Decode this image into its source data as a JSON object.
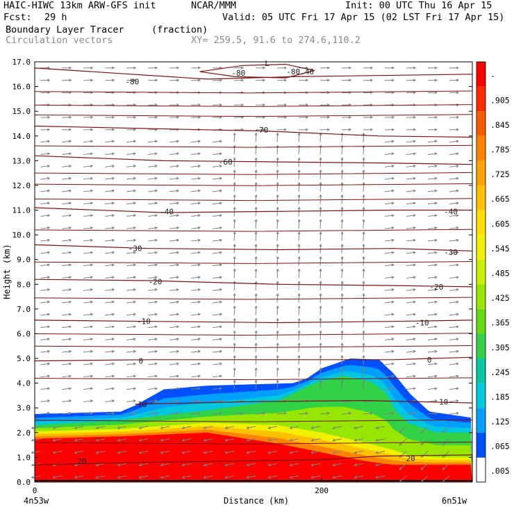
{
  "header": {
    "model": "HAIC-HIWC 13km ARW-GFS init",
    "center": "NCAR/MMM",
    "init": "Init: 00 UTC Thu 16 Apr 15",
    "fcst_label": "Fcst:",
    "fcst_value": "29 h",
    "valid": "Valid: 05 UTC Fri 17 Apr 15 (02 LST Fri 17 Apr 15)",
    "field": "Boundary Layer Tracer",
    "field_units": "(fraction)",
    "overlay": "Circulation vectors",
    "xy": "XY= 259.5, 91.6 to 274.6,110.2"
  },
  "colors": {
    "contour": "#7a1010",
    "vector": "#808080",
    "red": "#ff0000",
    "blue": "#0050ff"
  },
  "chart_data": {
    "type": "heatmap",
    "title": "Boundary Layer Tracer",
    "xlabel": "Distance (km)",
    "ylabel": "Height (km)",
    "xlim": [
      0,
      305
    ],
    "ylim": [
      0,
      17
    ],
    "x_ticks": [
      0,
      200
    ],
    "x_end_labels": [
      "4n53w",
      "6n51w"
    ],
    "y_ticks": [
      0.0,
      1.0,
      2.0,
      3.0,
      4.0,
      5.0,
      6.0,
      7.0,
      8.0,
      9.0,
      10.0,
      11.0,
      12.0,
      13.0,
      14.0,
      15.0,
      16.0,
      17.0
    ],
    "y_tick_labels": [
      "0.0",
      "1.0",
      "2.0",
      "3.0",
      "4.0",
      "5.0",
      "6.0",
      "7.0",
      "8.0",
      "9.0",
      "10.0",
      "11.0",
      "12.0",
      "13.0",
      "14.0",
      "15.0",
      "16.0",
      "17.0"
    ],
    "colorbar": {
      "labels": [
        "-",
        ".905",
        ".845",
        ".785",
        ".725",
        ".665",
        ".605",
        ".545",
        ".485",
        ".425",
        ".365",
        ".305",
        ".245",
        ".185",
        ".125",
        ".065",
        ".005"
      ],
      "colors": [
        "#ff0000",
        "#ff2a00",
        "#ff5a00",
        "#ff8200",
        "#ffa000",
        "#ffc000",
        "#ffe000",
        "#f0f000",
        "#c8f000",
        "#96e600",
        "#64dc14",
        "#32d246",
        "#00c8a0",
        "#00c8dc",
        "#00a0ff",
        "#0050ff",
        "#ffffff"
      ]
    },
    "temperature_contours": [
      {
        "label": "-80",
        "points": [
          [
            0,
            16.75
          ],
          [
            40,
            16.6
          ],
          [
            120,
            16.3
          ],
          [
            180,
            16.4
          ],
          [
            305,
            16.5
          ]
        ],
        "label_at": [
          68,
          16.2
        ]
      },
      {
        "label": "-80",
        "points": [
          [
            115,
            16.6
          ],
          [
            145,
            16.85
          ],
          [
            175,
            16.9
          ],
          [
            195,
            16.65
          ],
          [
            175,
            16.35
          ],
          [
            140,
            16.4
          ],
          [
            115,
            16.6
          ]
        ],
        "label_at": [
          142,
          16.55
        ]
      },
      {
        "label": "-80.46",
        "points": [],
        "label_at": [
          185,
          16.6
        ]
      },
      {
        "label": "L",
        "points": [],
        "label_at": [
          162,
          16.95
        ]
      },
      {
        "label": "-70",
        "points": [
          [
            0,
            14.4
          ],
          [
            80,
            14.3
          ],
          [
            160,
            14.2
          ],
          [
            240,
            14.0
          ],
          [
            305,
            13.95
          ]
        ],
        "label_at": [
          158,
          14.25
        ]
      },
      {
        "label": "-60",
        "points": [
          [
            0,
            13.2
          ],
          [
            90,
            13.0
          ],
          [
            170,
            12.95
          ],
          [
            250,
            12.9
          ],
          [
            305,
            12.85
          ]
        ],
        "label_at": [
          133,
          12.95
        ]
      },
      {
        "label": "-40",
        "points": [
          [
            0,
            11.1
          ],
          [
            90,
            10.9
          ],
          [
            170,
            10.95
          ],
          [
            250,
            11.0
          ],
          [
            305,
            11.0
          ]
        ],
        "label_at": [
          92,
          10.95
        ],
        "label_at2": [
          290,
          10.95
        ]
      },
      {
        "label": "-30",
        "points": [
          [
            0,
            9.6
          ],
          [
            80,
            9.45
          ],
          [
            170,
            9.4
          ],
          [
            250,
            9.45
          ],
          [
            305,
            9.35
          ]
        ],
        "label_at": [
          70,
          9.45
        ],
        "label_at2": [
          290,
          9.3
        ]
      },
      {
        "label": "-20",
        "points": [
          [
            0,
            8.2
          ],
          [
            80,
            8.15
          ],
          [
            170,
            8.0
          ],
          [
            250,
            7.95
          ],
          [
            305,
            7.9
          ]
        ],
        "label_at": [
          84,
          8.1
        ],
        "label_at2": [
          280,
          7.9
        ]
      },
      {
        "label": "-10",
        "points": [
          [
            0,
            6.55
          ],
          [
            80,
            6.5
          ],
          [
            170,
            6.45
          ],
          [
            250,
            6.5
          ],
          [
            305,
            6.55
          ]
        ],
        "label_at": [
          76,
          6.5
        ],
        "label_at2": [
          270,
          6.45
        ]
      },
      {
        "label": "0",
        "points": [
          [
            0,
            4.9
          ],
          [
            80,
            4.95
          ],
          [
            170,
            4.95
          ],
          [
            250,
            4.95
          ],
          [
            305,
            5.05
          ]
        ],
        "label_at": [
          74,
          4.9
        ],
        "label_at2": [
          275,
          4.95
        ]
      },
      {
        "label": "10",
        "points": [
          [
            70,
            3.15
          ],
          [
            150,
            3.25
          ],
          [
            230,
            3.3
          ],
          [
            305,
            3.2
          ]
        ],
        "label_at": [
          75,
          3.15
        ],
        "label_at2": [
          285,
          3.25
        ]
      },
      {
        "label": "20",
        "points": [
          [
            0,
            0.7
          ],
          [
            80,
            0.8
          ],
          [
            200,
            0.9
          ],
          [
            240,
            1.05
          ],
          [
            305,
            1.1
          ]
        ],
        "label_at": [
          33,
          0.85
        ],
        "label_at2": [
          262,
          0.95
        ]
      }
    ],
    "tracer_field": {
      "top_boundary": [
        [
          0,
          2.75
        ],
        [
          60,
          2.85
        ],
        [
          70,
          3.1
        ],
        [
          90,
          3.75
        ],
        [
          120,
          3.9
        ],
        [
          180,
          4.0
        ],
        [
          190,
          4.2
        ],
        [
          200,
          4.6
        ],
        [
          220,
          5.0
        ],
        [
          240,
          4.95
        ],
        [
          250,
          4.4
        ],
        [
          262,
          3.55
        ],
        [
          275,
          2.85
        ],
        [
          305,
          2.6
        ]
      ],
      "green_top": [
        [
          0,
          2.3
        ],
        [
          60,
          2.5
        ],
        [
          120,
          2.9
        ],
        [
          170,
          3.3
        ],
        [
          195,
          4.0
        ],
        [
          215,
          4.3
        ],
        [
          235,
          4.05
        ],
        [
          245,
          3.6
        ],
        [
          250,
          3.0
        ],
        [
          260,
          2.4
        ],
        [
          280,
          2.0
        ],
        [
          305,
          2.0
        ]
      ],
      "yellow_top": [
        [
          0,
          2.05
        ],
        [
          60,
          2.15
        ],
        [
          120,
          2.4
        ],
        [
          170,
          2.3
        ],
        [
          200,
          2.0
        ],
        [
          230,
          1.6
        ],
        [
          250,
          1.3
        ],
        [
          260,
          1.1
        ],
        [
          280,
          1.0
        ],
        [
          305,
          1.0
        ]
      ],
      "red_top": [
        [
          0,
          1.75
        ],
        [
          60,
          1.85
        ],
        [
          120,
          2.0
        ],
        [
          170,
          1.55
        ],
        [
          200,
          1.2
        ],
        [
          230,
          0.85
        ],
        [
          250,
          0.7
        ],
        [
          305,
          0.7
        ]
      ]
    }
  }
}
